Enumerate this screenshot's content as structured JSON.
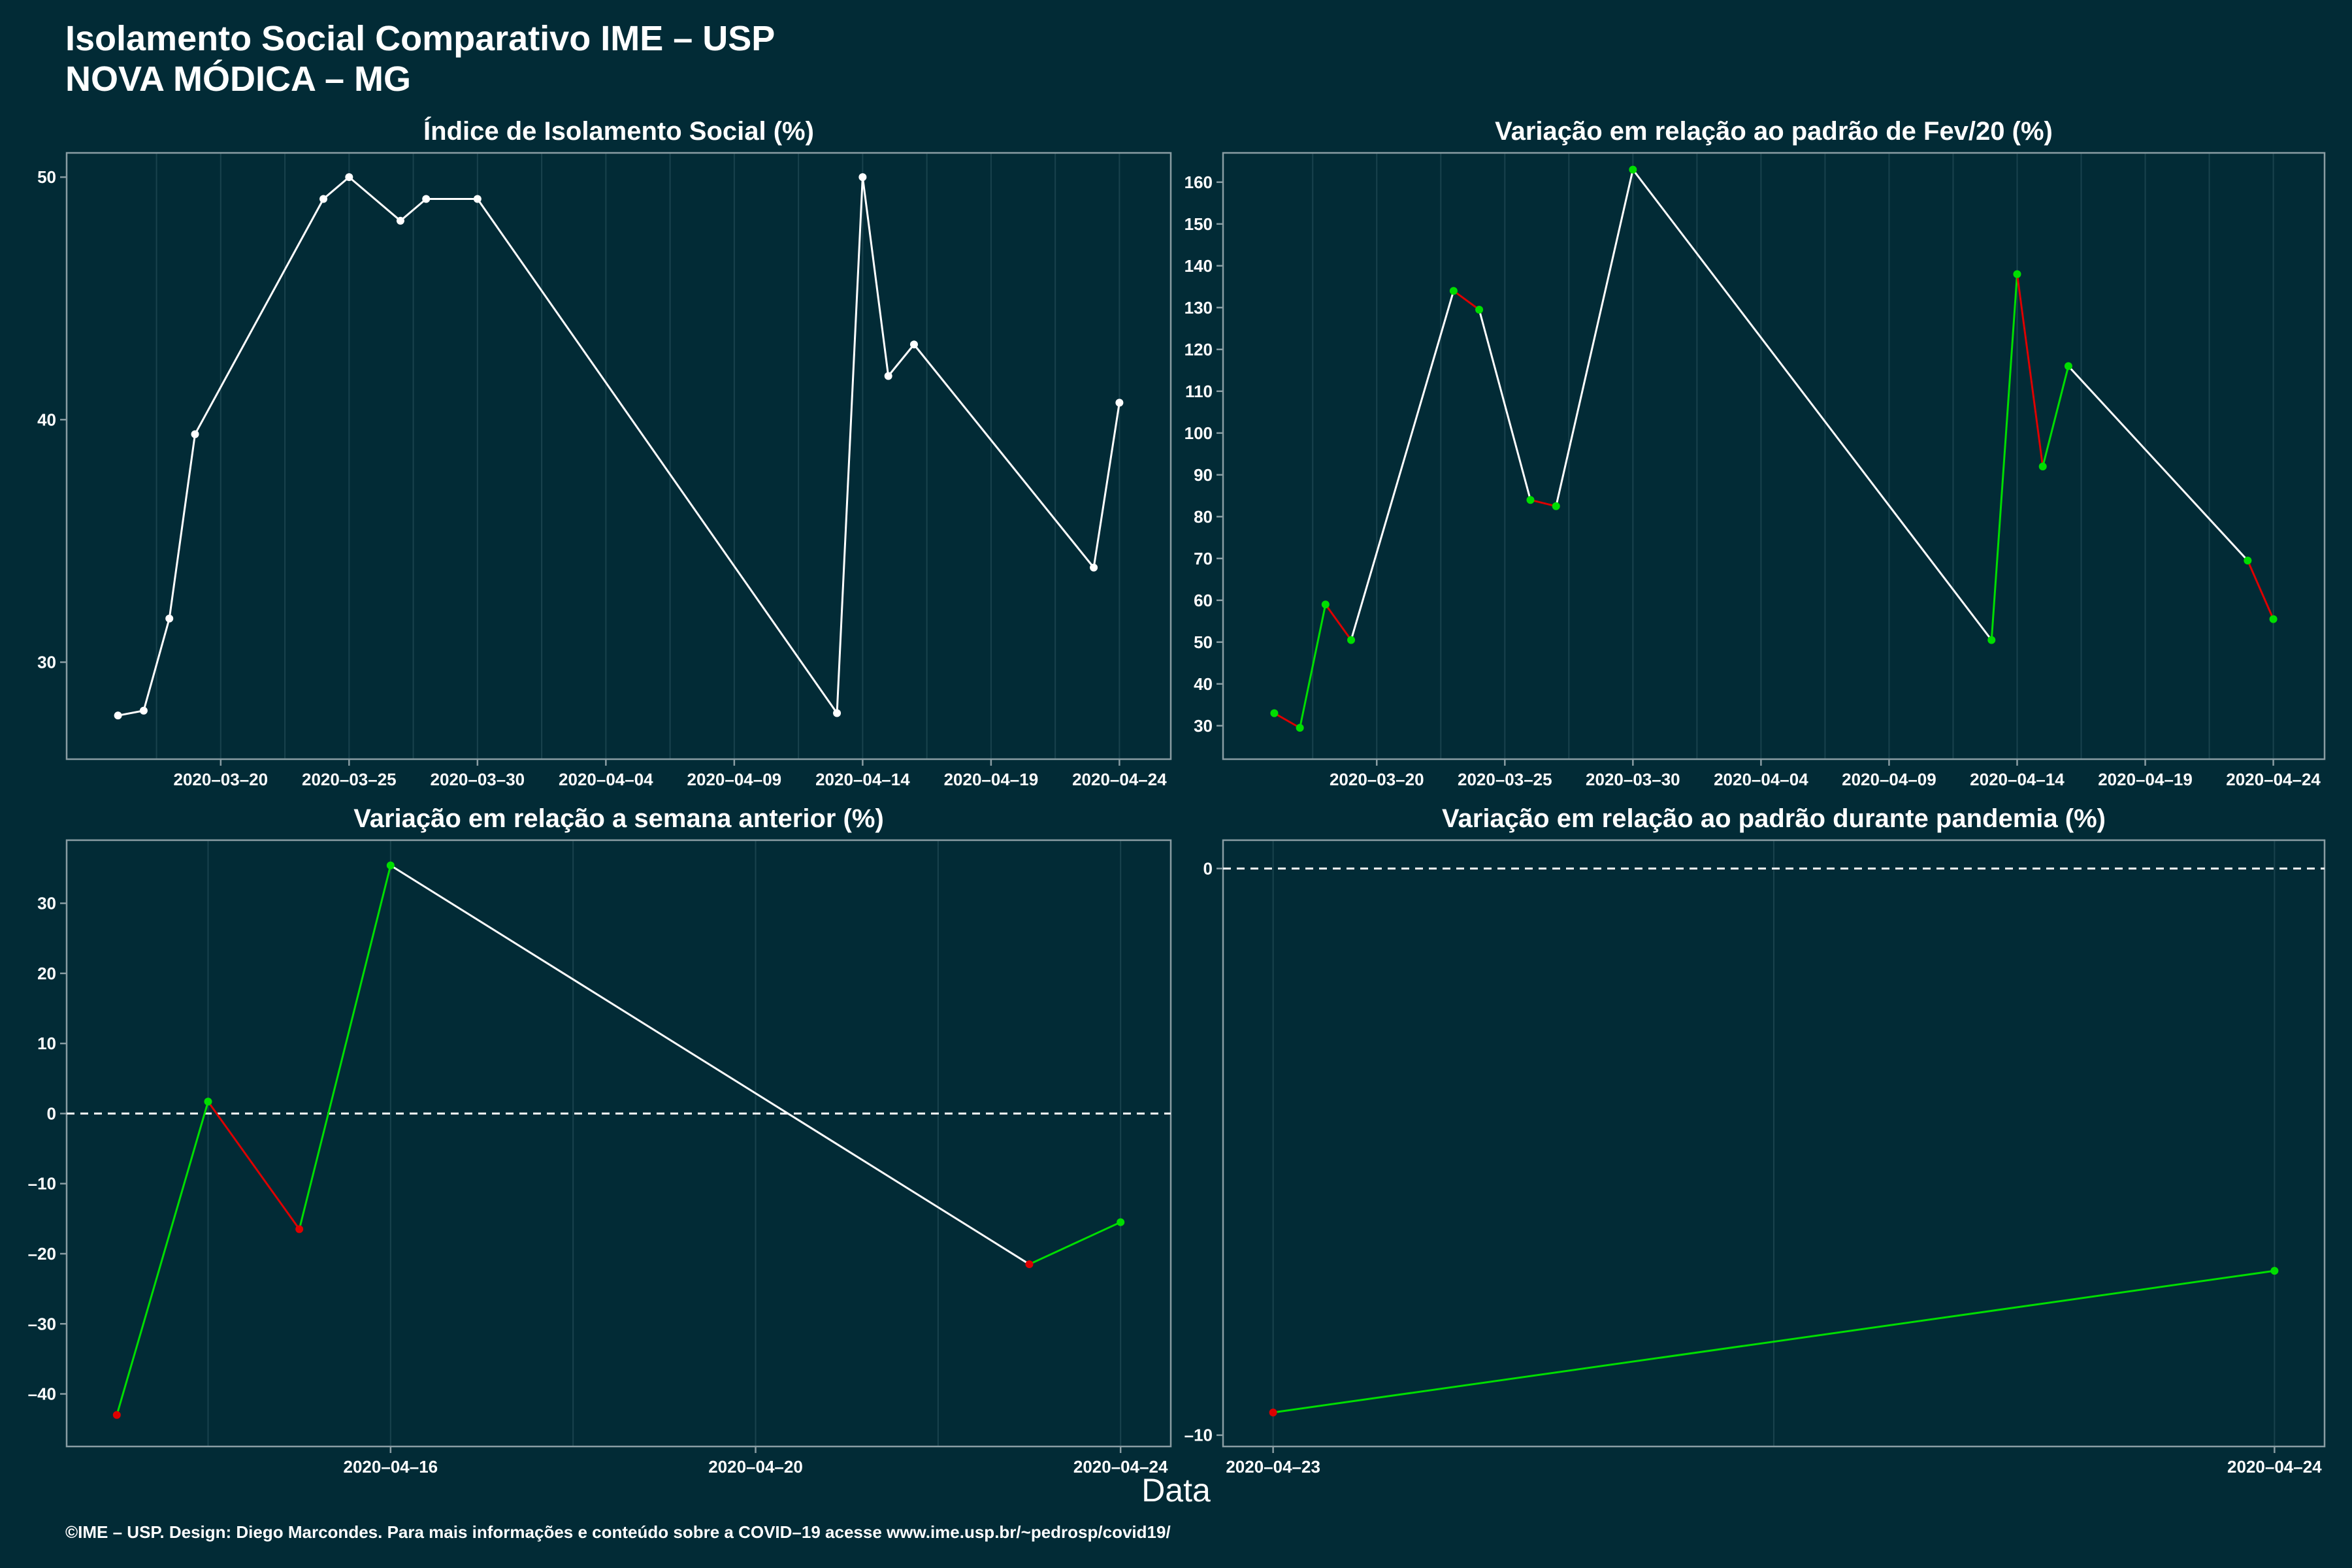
{
  "header": {
    "title_line1": "Isolamento Social Comparativo IME – USP",
    "title_line2": "NOVA MÓDICA – MG"
  },
  "x_axis_caption": "Data",
  "footer": "©IME – USP. Design: Diego Marcondes. Para mais informações e conteúdo sobre a COVID–19 acesse www.ime.usp.br/~pedrosp/covid19/",
  "colors": {
    "background": "#022b36",
    "panel_border": "#8a9da3",
    "grid": "#19424d",
    "line_default": "#ffffff",
    "increase": "#00dd00",
    "decrease": "#dd0000"
  },
  "chart_data": [
    {
      "type": "line",
      "title": "Índice de Isolamento Social (%)",
      "xlabel": "",
      "ylabel": "",
      "color_mode": "single",
      "x": [
        "2020-03-16",
        "2020-03-17",
        "2020-03-18",
        "2020-03-19",
        "2020-03-24",
        "2020-03-25",
        "2020-03-27",
        "2020-03-28",
        "2020-03-30",
        "2020-04-13",
        "2020-04-14",
        "2020-04-15",
        "2020-04-16",
        "2020-04-23",
        "2020-04-24"
      ],
      "y": [
        27.8,
        28.0,
        31.8,
        39.4,
        49.1,
        50.0,
        48.2,
        49.1,
        49.1,
        27.9,
        50.0,
        41.8,
        43.1,
        33.9,
        40.7
      ],
      "xlim": [
        "2020-03-14",
        "2020-04-26"
      ],
      "ylim": [
        26.0,
        51.0
      ],
      "xticks": [
        "2020-03-20",
        "2020-03-25",
        "2020-03-30",
        "2020-04-04",
        "2020-04-09",
        "2020-04-14",
        "2020-04-19",
        "2020-04-24"
      ],
      "yticks": [
        30,
        40,
        50
      ],
      "grid": true,
      "zero_line": false
    },
    {
      "type": "line",
      "title": "Variação em relação ao padrão de Fev/20 (%)",
      "xlabel": "",
      "ylabel": "",
      "color_mode": "trend",
      "x": [
        "2020-03-16",
        "2020-03-17",
        "2020-03-18",
        "2020-03-19",
        "2020-03-23",
        "2020-03-24",
        "2020-03-26",
        "2020-03-27",
        "2020-03-30",
        "2020-04-13",
        "2020-04-14",
        "2020-04-15",
        "2020-04-16",
        "2020-04-23",
        "2020-04-24"
      ],
      "y": [
        33,
        29.5,
        59,
        50.5,
        134,
        129.5,
        84,
        82.5,
        163,
        50.5,
        138,
        92,
        116,
        69.5,
        55.5
      ],
      "xlim": [
        "2020-03-14",
        "2020-04-26"
      ],
      "ylim": [
        22,
        167
      ],
      "xticks": [
        "2020-03-20",
        "2020-03-25",
        "2020-03-30",
        "2020-04-04",
        "2020-04-09",
        "2020-04-14",
        "2020-04-19",
        "2020-04-24"
      ],
      "yticks": [
        30,
        40,
        50,
        60,
        70,
        80,
        90,
        100,
        110,
        120,
        130,
        140,
        150,
        160
      ],
      "grid": true,
      "zero_line": false
    },
    {
      "type": "line",
      "title": "Variação em relação a semana anterior (%)",
      "xlabel": "",
      "ylabel": "",
      "color_mode": "trend",
      "x": [
        "2020-04-13",
        "2020-04-14",
        "2020-04-15",
        "2020-04-16",
        "2020-04-23",
        "2020-04-24"
      ],
      "y": [
        -43,
        1.7,
        -16.5,
        35.4,
        -21.5,
        -15.5
      ],
      "xlim": [
        "2020-04-12.45",
        "2020-04-24.55"
      ],
      "ylim": [
        -47.5,
        39
      ],
      "xticks": [
        "2020-04-16",
        "2020-04-20",
        "2020-04-24"
      ],
      "yticks": [
        -40,
        -30,
        -20,
        -10,
        0,
        10,
        20,
        30
      ],
      "grid": true,
      "zero_line": true
    },
    {
      "type": "line",
      "title": "Variação em relação ao padrão durante pandemia (%)",
      "xlabel": "",
      "ylabel": "",
      "color_mode": "trend",
      "x": [
        "2020-04-23",
        "2020-04-24"
      ],
      "y": [
        -9.6,
        -7.1
      ],
      "xlim": [
        "2020-04-22.95",
        "2020-04-24.05"
      ],
      "ylim": [
        -10.2,
        0.5
      ],
      "xticks": [
        "2020-04-23",
        "2020-04-24"
      ],
      "yticks": [
        -10,
        0
      ],
      "grid": true,
      "zero_line": true
    }
  ]
}
